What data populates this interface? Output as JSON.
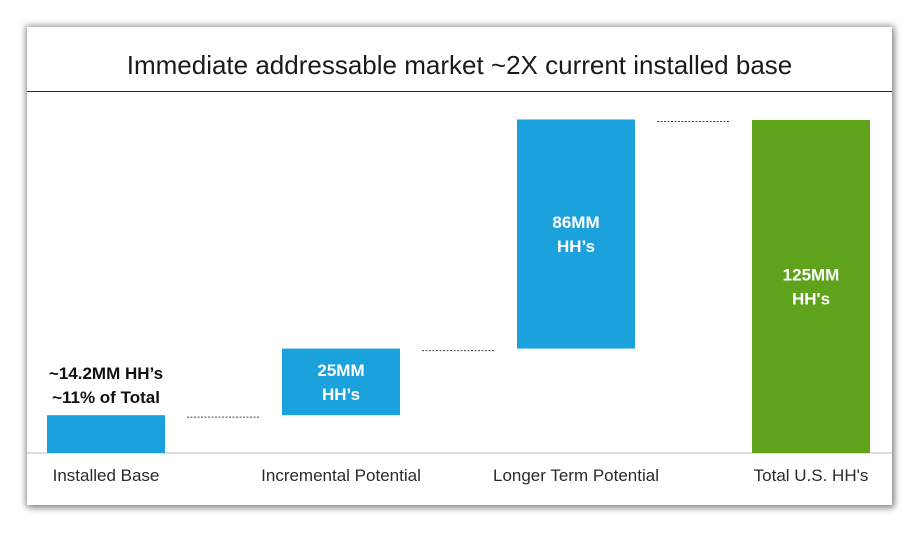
{
  "chart_data": {
    "type": "bar",
    "subtype": "waterfall",
    "title": "Immediate addressable market ~2X current installed base",
    "categories": [
      "Installed Base",
      "Incremental Potential",
      "Longer Term Potential",
      "Total U.S. HH's"
    ],
    "values": [
      14.2,
      25,
      86,
      125
    ],
    "data_labels": [
      [
        "~14.2MM HH’s",
        "~11% of Total"
      ],
      [
        "25MM",
        "HH’s"
      ],
      [
        "86MM",
        "HH’s"
      ],
      [
        "125MM",
        "HH's"
      ]
    ],
    "colors": [
      "#1ba1dc",
      "#1ba1dc",
      "#1ba1dc",
      "#5ea31b"
    ],
    "label_colors": [
      "#111111",
      "#ffffff",
      "#ffffff",
      "#ffffff"
    ],
    "connector_style": "dashed",
    "ylim": [
      0,
      125
    ],
    "xlabel": "",
    "ylabel": "",
    "grid": false,
    "legend": "none"
  }
}
